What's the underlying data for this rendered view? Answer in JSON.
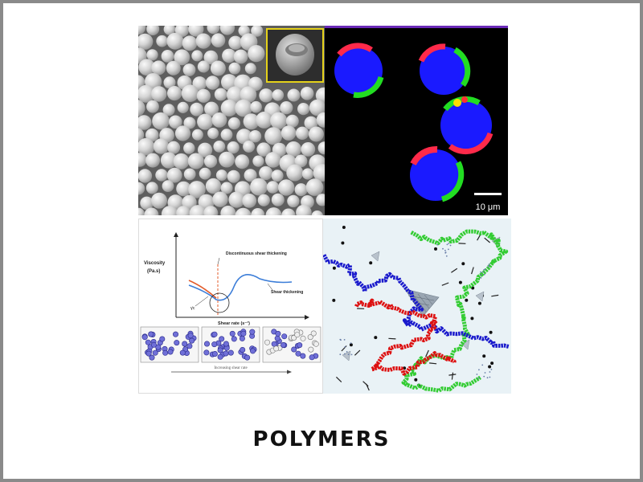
{
  "caption": "POLYMERS",
  "fluorescence_panel": {
    "scale_bar_label": "10 μm"
  },
  "rheology_panel": {
    "y_axis_label_line1": "Viscosity",
    "y_axis_label_line2": "(Pa.s)",
    "x_axis_label": "Shear rate (s⁻¹)",
    "annotation_dst": "Discontinuous shear thickening",
    "annotation_st": "Shear thickening",
    "annotation_yc": "γ̇c",
    "bottom_arrow_label": "Increasing shear rate"
  },
  "colors": {
    "fluor_red": "#ff2a4a",
    "fluor_green": "#22dd22",
    "fluor_blue": "#1a1aff",
    "chain_red": "#dd1111",
    "chain_green": "#33cc33",
    "chain_blue": "#1a1acc"
  }
}
